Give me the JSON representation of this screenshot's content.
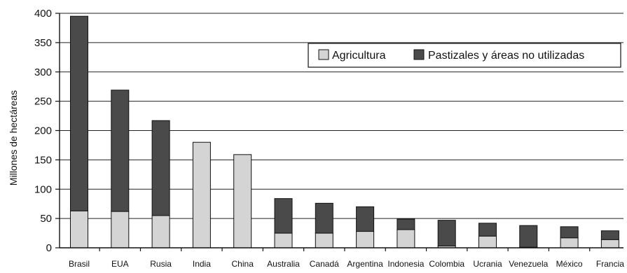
{
  "chart_data": {
    "type": "bar",
    "stacked": true,
    "ylabel": "Millones de hectáreas",
    "ylim": [
      0,
      400
    ],
    "yticks": [
      0,
      50,
      100,
      150,
      200,
      250,
      300,
      350,
      400
    ],
    "grid": "horizontal",
    "legend_position": "top-right",
    "categories": [
      "Brasil",
      "EUA",
      "Rusia",
      "India",
      "China",
      "Australia",
      "Canadá",
      "Argentina",
      "Indonesia",
      "Colombia",
      "Ucrania",
      "Venezuela",
      "México",
      "Francia"
    ],
    "series": [
      {
        "name": "Agricultura",
        "color": "#d4d4d4",
        "values": [
          63,
          62,
          55,
          180,
          0,
          25,
          25,
          28,
          31,
          3,
          20,
          1,
          17,
          14
        ]
      },
      {
        "name": "Pastizales y áreas no utilizadas",
        "color": "#4a4a4a",
        "values": [
          332,
          207,
          162,
          0,
          159,
          59,
          51,
          42,
          18,
          44,
          22,
          37,
          19,
          15
        ]
      }
    ],
    "overrides": {
      "China": {
        "Agricultura": 159,
        "Pastizales y áreas no utilizadas": 0
      }
    }
  }
}
